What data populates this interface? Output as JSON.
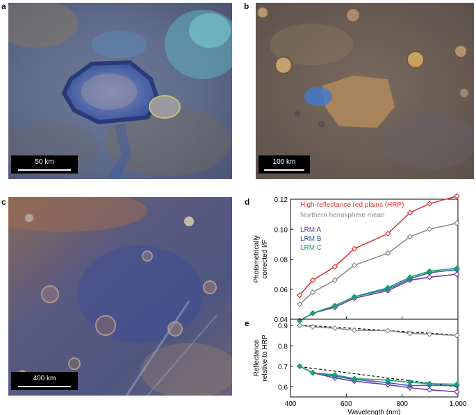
{
  "panels": {
    "a": {
      "letter": "a",
      "scalebar": "50 km"
    },
    "b": {
      "letter": "b",
      "scalebar": "100 km"
    },
    "c": {
      "letter": "c",
      "scalebar": "400 km"
    },
    "d": {
      "letter": "d"
    },
    "e": {
      "letter": "e"
    }
  },
  "colors": {
    "hrp": "#e03a3e",
    "mean": "#8c8c8c",
    "lrmA": "#6b3fa0",
    "lrmB": "#3b5bb5",
    "lrmC": "#1aa36a",
    "fit": "#000000"
  },
  "chart_data": [
    {
      "type": "line",
      "panel": "d",
      "ylabel": "Photometrically corrected I/F",
      "x": [
        433,
        480,
        559,
        629,
        749,
        828,
        898,
        996
      ],
      "xlim": [
        400,
        1000
      ],
      "ylim": [
        0.04,
        0.12
      ],
      "yticks": [
        0.04,
        0.06,
        0.08,
        0.1,
        0.12
      ],
      "yticklabels": [
        "0.04",
        "0.06",
        "0.08",
        "0.10",
        "0.12"
      ],
      "legend": [
        {
          "label": "High-reflectance red plains (HRP)",
          "key": "hrp"
        },
        {
          "label": "Northern hemisphere mean",
          "key": "mean"
        },
        {
          "label": "LRM A",
          "key": "lrmA"
        },
        {
          "label": "LRM B",
          "key": "lrmB"
        },
        {
          "label": "LRM C",
          "key": "lrmC"
        }
      ],
      "series": [
        {
          "name": "High-reflectance red plains (HRP)",
          "key": "hrp",
          "values": [
            0.056,
            0.066,
            0.075,
            0.087,
            0.097,
            0.111,
            0.117,
            0.122
          ]
        },
        {
          "name": "Northern hemisphere mean",
          "key": "mean",
          "values": [
            0.05,
            0.058,
            0.066,
            0.076,
            0.084,
            0.095,
            0.1,
            0.104
          ]
        },
        {
          "name": "LRM A",
          "key": "lrmA",
          "values": [
            0.039,
            0.044,
            0.048,
            0.054,
            0.059,
            0.066,
            0.068,
            0.07
          ]
        },
        {
          "name": "LRM B",
          "key": "lrmB",
          "values": [
            0.039,
            0.044,
            0.049,
            0.055,
            0.06,
            0.067,
            0.071,
            0.073
          ]
        },
        {
          "name": "LRM C",
          "key": "lrmC",
          "values": [
            0.039,
            0.044,
            0.049,
            0.055,
            0.061,
            0.068,
            0.072,
            0.074
          ]
        }
      ]
    },
    {
      "type": "line",
      "panel": "e",
      "xlabel": "Wavelength (nm)",
      "ylabel": "Reflectance relative to HRP",
      "x": [
        433,
        480,
        559,
        629,
        749,
        828,
        898,
        996
      ],
      "xlim": [
        400,
        1000
      ],
      "ylim": [
        0.55,
        0.93
      ],
      "xticks": [
        400,
        600,
        800,
        1000
      ],
      "xticklabels": [
        "400",
        "600",
        "800",
        "1,000"
      ],
      "yticks": [
        0.6,
        0.7,
        0.8,
        0.9
      ],
      "yticklabels": [
        "0.6",
        "0.7",
        "0.8",
        "0.9"
      ],
      "series": [
        {
          "name": "Northern hemisphere mean",
          "key": "mean",
          "values": [
            0.9,
            0.893,
            0.886,
            0.876,
            0.874,
            0.861,
            0.857,
            0.851
          ]
        },
        {
          "name": "LRM A",
          "key": "lrmA",
          "values": [
            0.7,
            0.668,
            0.643,
            0.627,
            0.61,
            0.595,
            0.585,
            0.575
          ]
        },
        {
          "name": "LRM B",
          "key": "lrmB",
          "values": [
            0.7,
            0.668,
            0.652,
            0.635,
            0.62,
            0.605,
            0.608,
            0.605
          ]
        },
        {
          "name": "LRM C",
          "key": "lrmC",
          "values": [
            0.7,
            0.668,
            0.658,
            0.64,
            0.632,
            0.622,
            0.615,
            0.612
          ]
        }
      ],
      "fits": [
        {
          "key": "mean",
          "from": [
            433,
            0.902
          ],
          "to": [
            996,
            0.853
          ]
        },
        {
          "key": "lrmA",
          "from": [
            433,
            0.698
          ],
          "to": [
            996,
            0.6
          ]
        }
      ]
    }
  ]
}
